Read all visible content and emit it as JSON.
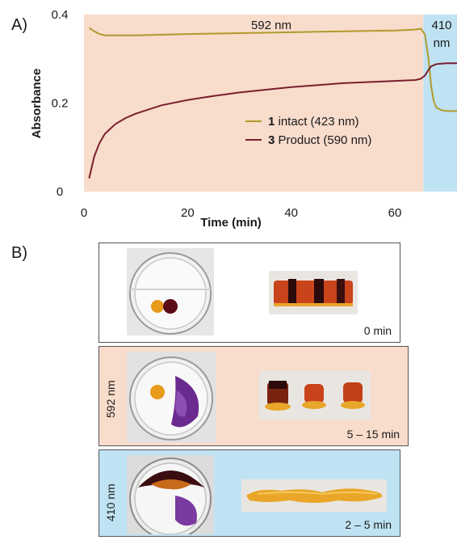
{
  "panel_a_label": "A)",
  "panel_b_label": "B)",
  "chart_data": {
    "type": "line",
    "xlabel": "Time (min)",
    "ylabel": "Absorbance",
    "xlim": [
      0,
      72
    ],
    "ylim": [
      0,
      0.4
    ],
    "x_ticks": [
      "0",
      "20",
      "40",
      "60"
    ],
    "y_ticks": [
      "0",
      "0.2",
      "0.4"
    ],
    "regions": [
      {
        "label": "592 nm",
        "x_start": 0,
        "x_end": 65.5,
        "color": "#f8dccc"
      },
      {
        "label_line1": "410",
        "label_line2": "nm",
        "x_start": 65.5,
        "x_end": 72,
        "color": "#bfe3f3"
      }
    ],
    "series": [
      {
        "name_num": "1",
        "name_rest": " intact (423 nm)",
        "color": "#b09a2c",
        "x": [
          1,
          2,
          3,
          4,
          6,
          10,
          20,
          30,
          40,
          50,
          60,
          64,
          65,
          65.8,
          66.5,
          67,
          67.5,
          68,
          69,
          70,
          72
        ],
        "y": [
          0.37,
          0.362,
          0.356,
          0.353,
          0.353,
          0.353,
          0.356,
          0.358,
          0.36,
          0.362,
          0.364,
          0.366,
          0.368,
          0.355,
          0.3,
          0.24,
          0.205,
          0.19,
          0.184,
          0.182,
          0.182
        ]
      },
      {
        "name_num": "3",
        "name_rest": " Product (590 nm)",
        "color": "#7a1f2e",
        "x": [
          1,
          2,
          3,
          4,
          6,
          8,
          10,
          15,
          20,
          25,
          30,
          40,
          50,
          60,
          64,
          65,
          65.8,
          66.5,
          67,
          68,
          70,
          72
        ],
        "y": [
          0.03,
          0.08,
          0.11,
          0.13,
          0.152,
          0.166,
          0.176,
          0.195,
          0.207,
          0.216,
          0.224,
          0.236,
          0.245,
          0.25,
          0.252,
          0.255,
          0.262,
          0.275,
          0.283,
          0.288,
          0.29,
          0.29
        ]
      }
    ]
  },
  "panel_b": {
    "rows": [
      {
        "time_label": "0 min",
        "wavelength_label": "",
        "bg": "#ffffff"
      },
      {
        "time_label": "5 – 15 min",
        "wavelength_label": "592 nm",
        "bg": "#f8dccc"
      },
      {
        "time_label": "2 – 5 min",
        "wavelength_label": "410 nm",
        "bg": "#bfe3f3"
      }
    ]
  }
}
